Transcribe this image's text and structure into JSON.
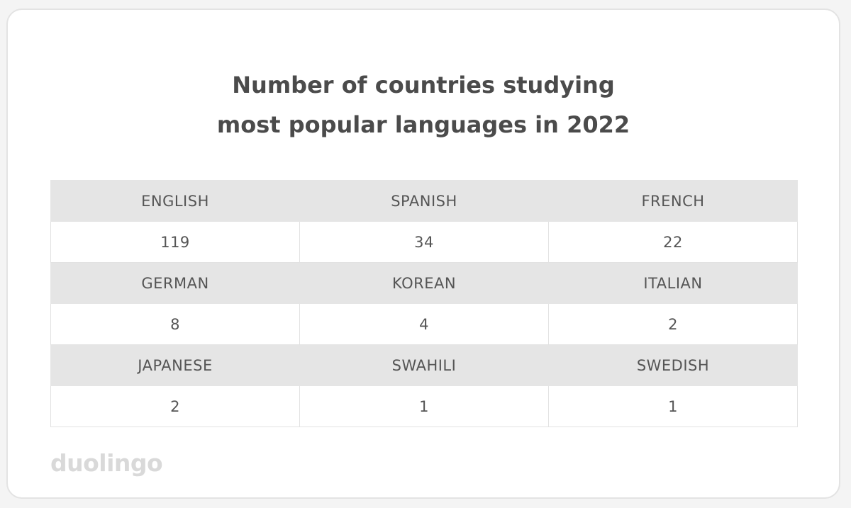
{
  "chart_data": {
    "type": "table",
    "title": "Number of countries studying most popular languages in 2022",
    "title_lines": [
      "Number of countries studying",
      "most popular languages in 2022"
    ],
    "rows": [
      {
        "labels": [
          "ENGLISH",
          "SPANISH",
          "FRENCH"
        ],
        "values": [
          "119",
          "34",
          "22"
        ]
      },
      {
        "labels": [
          "GERMAN",
          "KOREAN",
          "ITALIAN"
        ],
        "values": [
          "8",
          "4",
          "2"
        ]
      },
      {
        "labels": [
          "JAPANESE",
          "SWAHILI",
          "SWEDISH"
        ],
        "values": [
          "2",
          "1",
          "1"
        ]
      }
    ]
  },
  "brand": {
    "logo_text": "duolingo"
  },
  "colors": {
    "header_row_bg": "#e5e5e5",
    "text": "#555555",
    "title": "#4b4b4b",
    "logo": "#d9d9d9"
  }
}
